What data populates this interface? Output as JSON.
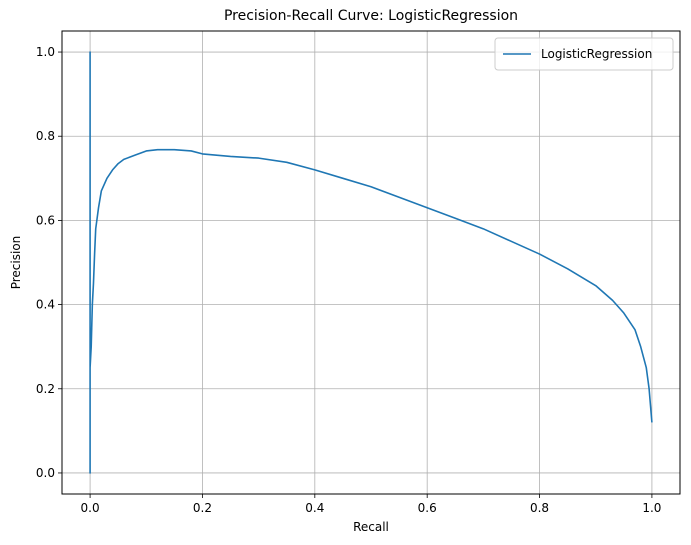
{
  "chart_data": {
    "type": "line",
    "title": "Precision-Recall Curve: LogisticRegression",
    "xlabel": "Recall",
    "ylabel": "Precision",
    "xlim": [
      -0.05,
      1.05
    ],
    "ylim": [
      -0.05,
      1.05
    ],
    "xticks": [
      0.0,
      0.2,
      0.4,
      0.6,
      0.8,
      1.0
    ],
    "yticks": [
      0.0,
      0.2,
      0.4,
      0.6,
      0.8,
      1.0
    ],
    "xtick_labels": [
      "0.0",
      "0.2",
      "0.4",
      "0.6",
      "0.8",
      "1.0"
    ],
    "ytick_labels": [
      "0.0",
      "0.2",
      "0.4",
      "0.6",
      "0.8",
      "1.0"
    ],
    "grid": true,
    "legend_position": "top-right",
    "series": [
      {
        "name": "LogisticRegression",
        "color": "#1f77b4",
        "x": [
          0.0,
          0.0,
          0.0,
          0.0,
          0.002,
          0.004,
          0.006,
          0.008,
          0.01,
          0.015,
          0.02,
          0.03,
          0.04,
          0.05,
          0.06,
          0.07,
          0.08,
          0.1,
          0.12,
          0.15,
          0.18,
          0.2,
          0.25,
          0.3,
          0.35,
          0.4,
          0.45,
          0.5,
          0.55,
          0.6,
          0.65,
          0.7,
          0.75,
          0.8,
          0.85,
          0.9,
          0.93,
          0.95,
          0.97,
          0.98,
          0.99,
          0.995,
          1.0
        ],
        "y": [
          0.0,
          1.0,
          0.0,
          0.25,
          0.3,
          0.4,
          0.45,
          0.52,
          0.58,
          0.63,
          0.67,
          0.7,
          0.72,
          0.735,
          0.745,
          0.75,
          0.755,
          0.765,
          0.768,
          0.768,
          0.765,
          0.758,
          0.752,
          0.748,
          0.738,
          0.72,
          0.7,
          0.68,
          0.655,
          0.63,
          0.605,
          0.58,
          0.55,
          0.52,
          0.485,
          0.445,
          0.41,
          0.38,
          0.34,
          0.3,
          0.25,
          0.2,
          0.12
        ]
      }
    ]
  }
}
